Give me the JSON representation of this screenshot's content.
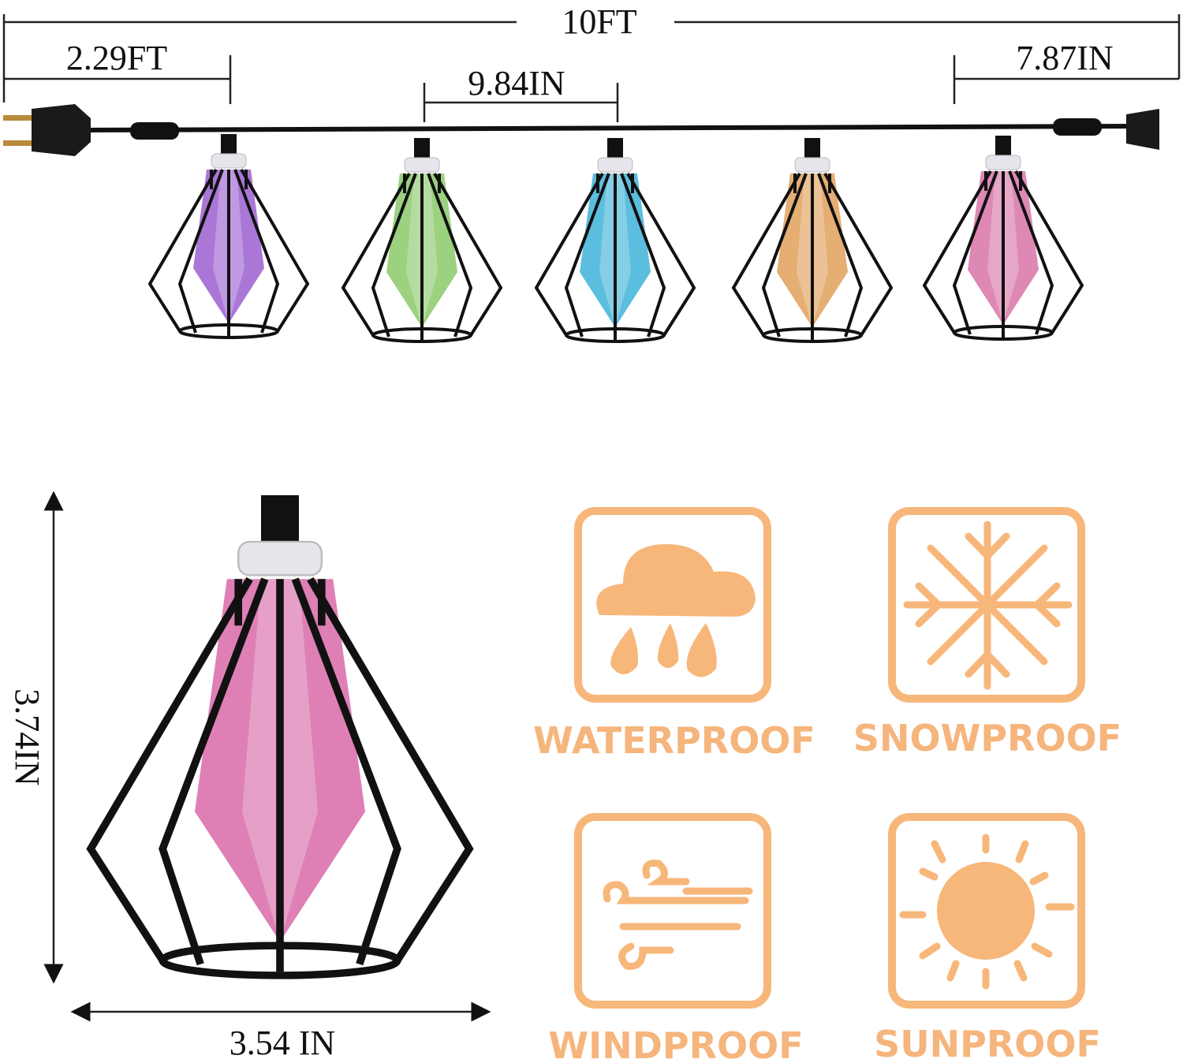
{
  "dimensions": {
    "total_length": "10FT",
    "lead_cord": "2.29FT",
    "bulb_spacing": "9.84IN",
    "end_cord": "7.87IN",
    "height": "3.74IN",
    "width": "3.54 IN"
  },
  "features": [
    "WATERPROOF",
    "SNOWPROOF",
    "WINDPROOF",
    "SUNPROOF"
  ]
}
